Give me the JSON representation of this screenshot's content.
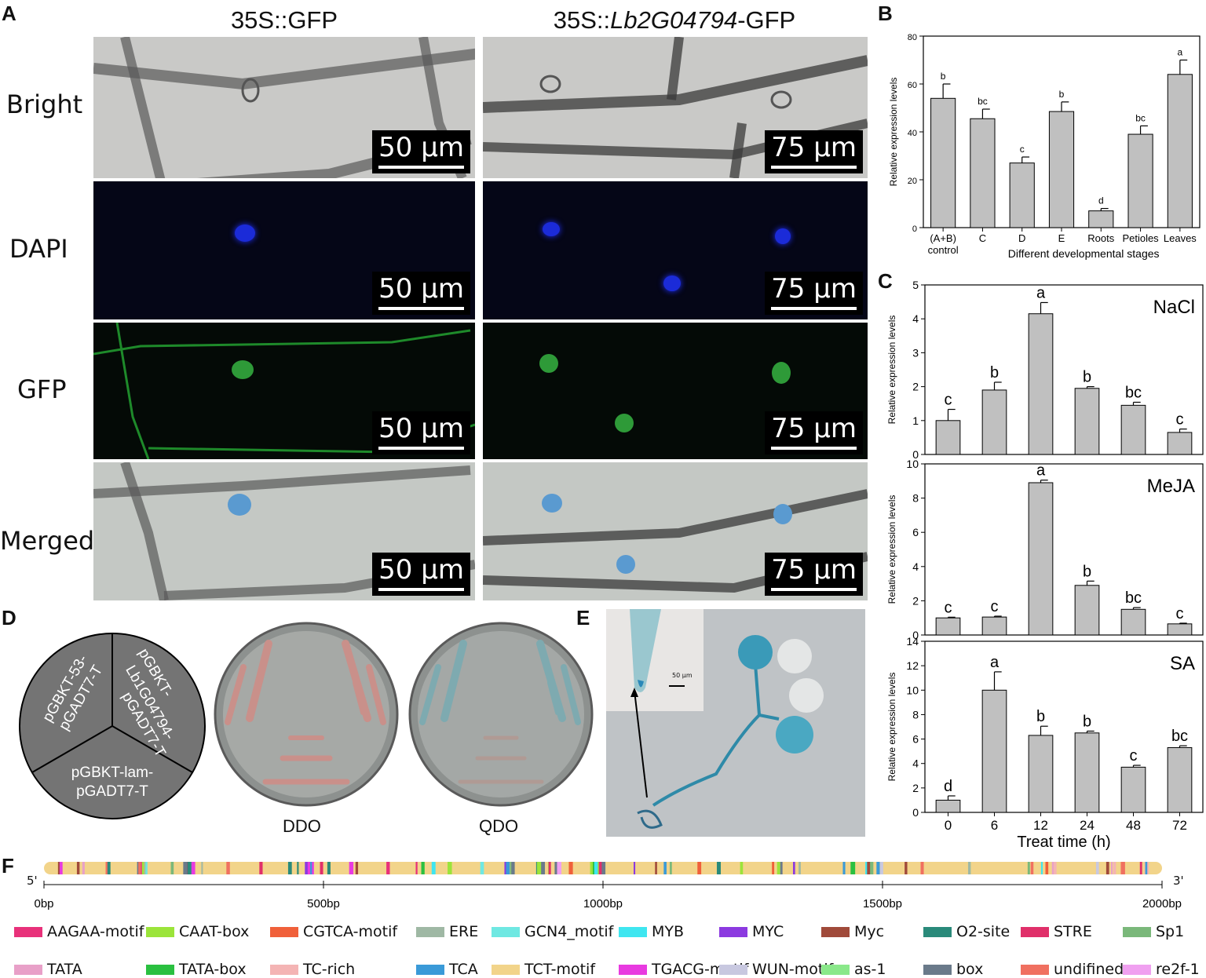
{
  "panels": {
    "A": "A",
    "B": "B",
    "C": "C",
    "D": "D",
    "E": "E",
    "F": "F"
  },
  "panelA": {
    "col_titles": [
      "35S::GFP",
      "35S::",
      "Lb2G04794",
      "-GFP"
    ],
    "rows": [
      "Bright",
      "DAPI",
      "GFP",
      "Merged"
    ],
    "scale_left": "50 μm",
    "scale_right": "75 μm"
  },
  "panelB": {
    "ylabel": "Relative expression levels",
    "xlabel": "Different developmental stages",
    "categories": [
      "(A+B)",
      "C",
      "D",
      "E",
      "Roots",
      "Petioles",
      "Leaves"
    ],
    "category_sub": "control"
  },
  "panelC": {
    "xlabel": "Treat time (h)",
    "ylabel": "Relative expression levels",
    "x_ticks": [
      "0",
      "6",
      "12",
      "24",
      "48",
      "72"
    ]
  },
  "panelD": {
    "pie_labels": [
      "pGBKT-53-",
      "pGADT7-T",
      "pGBKT-",
      "Lb1G04794-",
      "pGADT7-T",
      "pGBKT-lam-",
      "pGADT7-T"
    ],
    "plate_labels": [
      "DDO",
      "QDO"
    ]
  },
  "panelE": {
    "scale": "50 μm"
  },
  "panelF": {
    "five_prime": "5'",
    "three_prime": "3'",
    "ticks": [
      "0bp",
      "500bp",
      "1000bp",
      "1500bp",
      "2000bp"
    ],
    "legend": [
      {
        "label": "AAGAA-motif",
        "color": "#e8317a"
      },
      {
        "label": "CAAT-box",
        "color": "#9be43a"
      },
      {
        "label": "CGTCA-motif",
        "color": "#f0603a"
      },
      {
        "label": "ERE",
        "color": "#9fb8a4"
      },
      {
        "label": "GCN4_motif",
        "color": "#6fe8e2"
      },
      {
        "label": "MYB",
        "color": "#3fe6f0"
      },
      {
        "label": "MYC",
        "color": "#8c3ae0"
      },
      {
        "label": "Myc",
        "color": "#a04a3a"
      },
      {
        "label": "O2-site",
        "color": "#2a8a7a"
      },
      {
        "label": "STRE",
        "color": "#e0306a"
      },
      {
        "label": "Sp1",
        "color": "#7ab87a"
      },
      {
        "label": "TATA",
        "color": "#e8a0c8"
      },
      {
        "label": "TATA-box",
        "color": "#2ac040"
      },
      {
        "label": "TC-rich",
        "color": "#f4b4b4"
      },
      {
        "label": "TCA",
        "color": "#3a9ad8"
      },
      {
        "label": "TCT-motif",
        "color": "#f2d48a"
      },
      {
        "label": "TGACG-motif",
        "color": "#e83ae0"
      },
      {
        "label": "WUN-motif",
        "color": "#c8c8e0"
      },
      {
        "label": "as-1",
        "color": "#8ae88a"
      },
      {
        "label": "box",
        "color": "#6a7a8a"
      },
      {
        "label": "undifined",
        "color": "#f07060"
      },
      {
        "label": "re2f-1",
        "color": "#f0a0f0"
      }
    ]
  },
  "chart_data": [
    {
      "type": "bar",
      "panel": "B",
      "categories": [
        "(A+B) control",
        "C",
        "D",
        "E",
        "Roots",
        "Petioles",
        "Leaves"
      ],
      "values": [
        54,
        45.5,
        27,
        48.5,
        7,
        39,
        64
      ],
      "errors": [
        6,
        4,
        2.5,
        4,
        1,
        3.5,
        6
      ],
      "letters": [
        "b",
        "bc",
        "c",
        "b",
        "d",
        "bc",
        "a"
      ],
      "ylim": [
        0,
        80
      ],
      "yticks": [
        0,
        20,
        40,
        60,
        80
      ],
      "xlabel": "Different developmental stages",
      "ylabel": "Relative expression levels"
    },
    {
      "type": "bar",
      "panel": "C-NaCl",
      "title": "NaCl",
      "categories": [
        "0",
        "6",
        "12",
        "24",
        "48",
        "72"
      ],
      "values": [
        1.0,
        1.9,
        4.15,
        1.95,
        1.45,
        0.65
      ],
      "errors": [
        0.33,
        0.23,
        0.33,
        0.05,
        0.09,
        0.1
      ],
      "letters": [
        "c",
        "b",
        "a",
        "b",
        "bc",
        "c"
      ],
      "ylim": [
        0,
        5
      ],
      "yticks": [
        0,
        1,
        2,
        3,
        4,
        5
      ],
      "ylabel": "Relative expression levels"
    },
    {
      "type": "bar",
      "panel": "C-MeJA",
      "title": "MeJA",
      "categories": [
        "0",
        "6",
        "12",
        "24",
        "48",
        "72"
      ],
      "values": [
        1.0,
        1.05,
        8.9,
        2.9,
        1.5,
        0.65
      ],
      "errors": [
        0.04,
        0.05,
        0.15,
        0.25,
        0.1,
        0.04
      ],
      "letters": [
        "c",
        "c",
        "a",
        "b",
        "bc",
        "c"
      ],
      "ylim": [
        0,
        10
      ],
      "yticks": [
        0,
        2,
        4,
        6,
        8,
        10
      ],
      "ylabel": "Relative expression levels"
    },
    {
      "type": "bar",
      "panel": "C-SA",
      "title": "SA",
      "categories": [
        "0",
        "6",
        "12",
        "24",
        "48",
        "72"
      ],
      "values": [
        1.0,
        10.0,
        6.3,
        6.5,
        3.7,
        5.3
      ],
      "errors": [
        0.35,
        1.5,
        0.75,
        0.15,
        0.15,
        0.15
      ],
      "letters": [
        "d",
        "a",
        "b",
        "b",
        "c",
        "bc"
      ],
      "ylim": [
        0,
        14
      ],
      "yticks": [
        0,
        2,
        4,
        6,
        8,
        10,
        12,
        14
      ],
      "xlabel": "Treat time (h)",
      "ylabel": "Relative expression levels"
    }
  ]
}
